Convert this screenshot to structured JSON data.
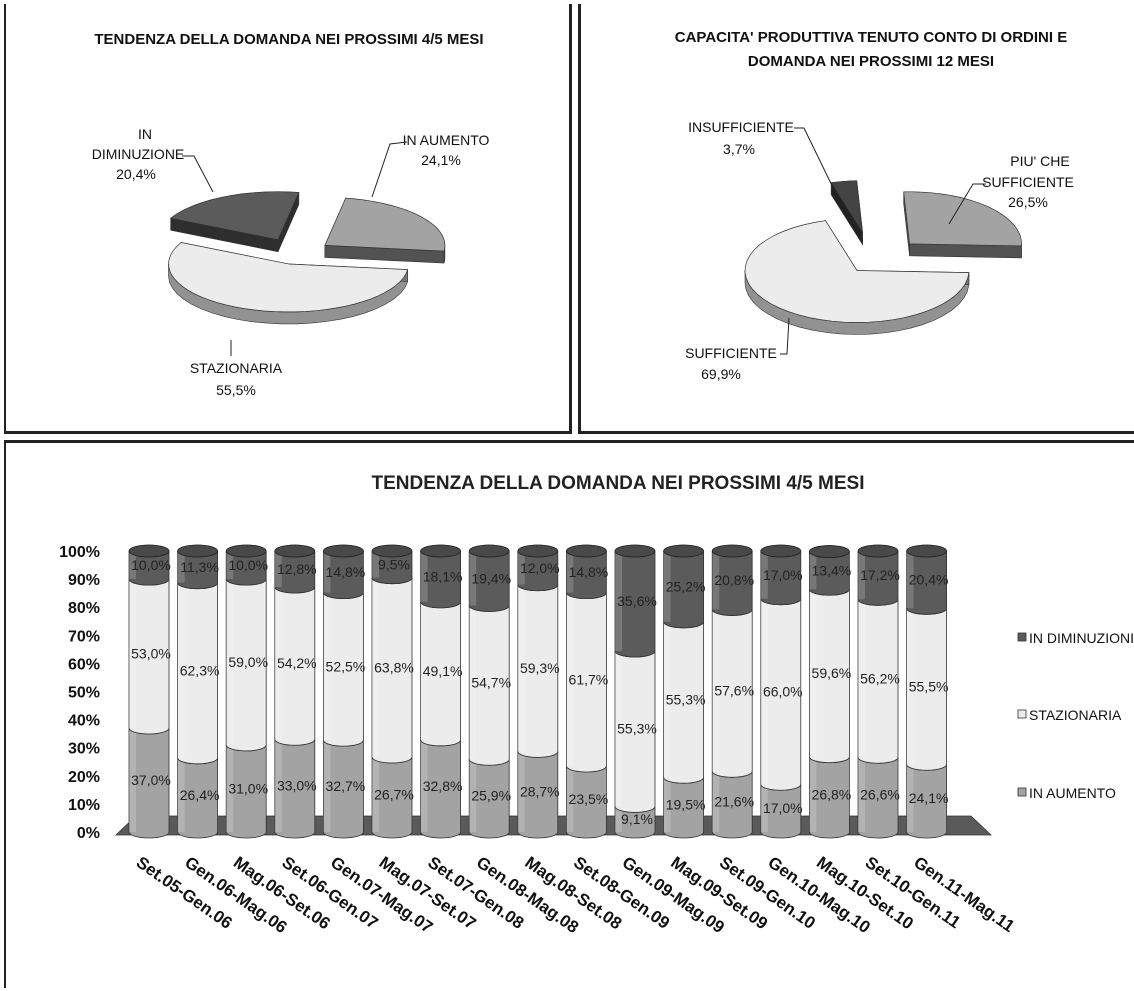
{
  "colors": {
    "aumento": "#a3a3a3",
    "stazionaria": "#ececec",
    "diminuzione": "#5b5b5b",
    "insufficiente": "#444444",
    "sufficiente": "#ececec",
    "piu_che_sufficiente": "#a3a3a3",
    "floor": "#5a5a5a"
  },
  "chart_data": [
    {
      "type": "pie",
      "title": "TENDENZA DELLA DOMANDA NEI PROSSIMI 4/5 MESI",
      "slices": [
        {
          "label": "IN AUMENTO",
          "value": 24.1,
          "value_label": "24,1%"
        },
        {
          "label": "STAZIONARIA",
          "value": 55.5,
          "value_label": "55,5%"
        },
        {
          "label_lines": [
            "IN",
            "DIMINUZIONE"
          ],
          "value": 20.4,
          "value_label": "20,4%"
        }
      ]
    },
    {
      "type": "pie",
      "title_lines": [
        "CAPACITA' PRODUTTIVA TENUTO CONTO DI ORDINI E",
        "DOMANDA NEI PROSSIMI 12 MESI"
      ],
      "slices": [
        {
          "label_lines": [
            "PIU' CHE",
            "SUFFICIENTE"
          ],
          "value": 26.5,
          "value_label": "26,5%"
        },
        {
          "label": "SUFFICIENTE",
          "value": 69.9,
          "value_label": "69,9%"
        },
        {
          "label": "INSUFFICIENTE",
          "value": 3.7,
          "value_label": "3,7%"
        }
      ]
    },
    {
      "type": "bar",
      "stacked": true,
      "percent": true,
      "title": "TENDENZA DELLA DOMANDA NEI PROSSIMI 4/5 MESI",
      "ylim": [
        0,
        100
      ],
      "yticks": [
        "0%",
        "10%",
        "20%",
        "30%",
        "40%",
        "50%",
        "60%",
        "70%",
        "80%",
        "90%",
        "100%"
      ],
      "legend_position": "right",
      "categories": [
        "Set.05-Gen.06",
        "Gen.06-Mag.06",
        "Mag.06-Set.06",
        "Set.06-Gen.07",
        "Gen.07-Mag.07",
        "Mag.07-Set.07",
        "Set.07-Gen.08",
        "Gen.08-Mag.08",
        "Mag.08-Set.08",
        "Set.08-Gen.09",
        "Gen.09-Mag.09",
        "Mag.09-Set.09",
        "Set.09-Gen.10",
        "Gen.10-Mag.10",
        "Mag.10-Set.10",
        "Set.10-Gen.11",
        "Gen.11-Mag.11"
      ],
      "series": [
        {
          "name": "IN AUMENTO",
          "values": [
            37.0,
            26.4,
            31.0,
            33.0,
            32.7,
            26.7,
            32.8,
            25.9,
            28.7,
            23.5,
            9.1,
            19.5,
            21.6,
            17.0,
            26.8,
            26.6,
            24.1
          ],
          "labels": [
            "37,0%",
            "26,4%",
            "31,0%",
            "33,0%",
            "32,7%",
            "26,7%",
            "32,8%",
            "25,9%",
            "28,7%",
            "23,5%",
            "9,1%",
            "19,5%",
            "21,6%",
            "17,0%",
            "26,8%",
            "26,6%",
            "24,1%"
          ]
        },
        {
          "name": "STAZIONARIA",
          "values": [
            53.0,
            62.3,
            59.0,
            54.2,
            52.5,
            63.8,
            49.1,
            54.7,
            59.3,
            61.7,
            55.3,
            55.3,
            57.6,
            66.0,
            59.6,
            56.2,
            55.5
          ],
          "labels": [
            "53,0%",
            "62,3%",
            "59,0%",
            "54,2%",
            "52,5%",
            "63,8%",
            "49,1%",
            "54,7%",
            "59,3%",
            "61,7%",
            "55,3%",
            "55,3%",
            "57,6%",
            "66,0%",
            "59,6%",
            "56,2%",
            "55,5%"
          ]
        },
        {
          "name": "IN DIMINUZIONE",
          "legend_label": "IN DIMINUZIONI",
          "values": [
            10.0,
            11.3,
            10.0,
            12.8,
            14.8,
            9.5,
            18.1,
            19.4,
            12.0,
            14.8,
            35.6,
            25.2,
            20.8,
            17.0,
            13.4,
            17.2,
            20.4
          ],
          "labels": [
            "10,0%",
            "11,3%",
            "10,0%",
            "12,8%",
            "14,8%",
            "9,5%",
            "18,1%",
            "19,4%",
            "12,0%",
            "14,8%",
            "35,6%",
            "25,2%",
            "20,8%",
            "17,0%",
            "13,4%",
            "17,2%",
            "20,4%"
          ]
        }
      ]
    }
  ]
}
